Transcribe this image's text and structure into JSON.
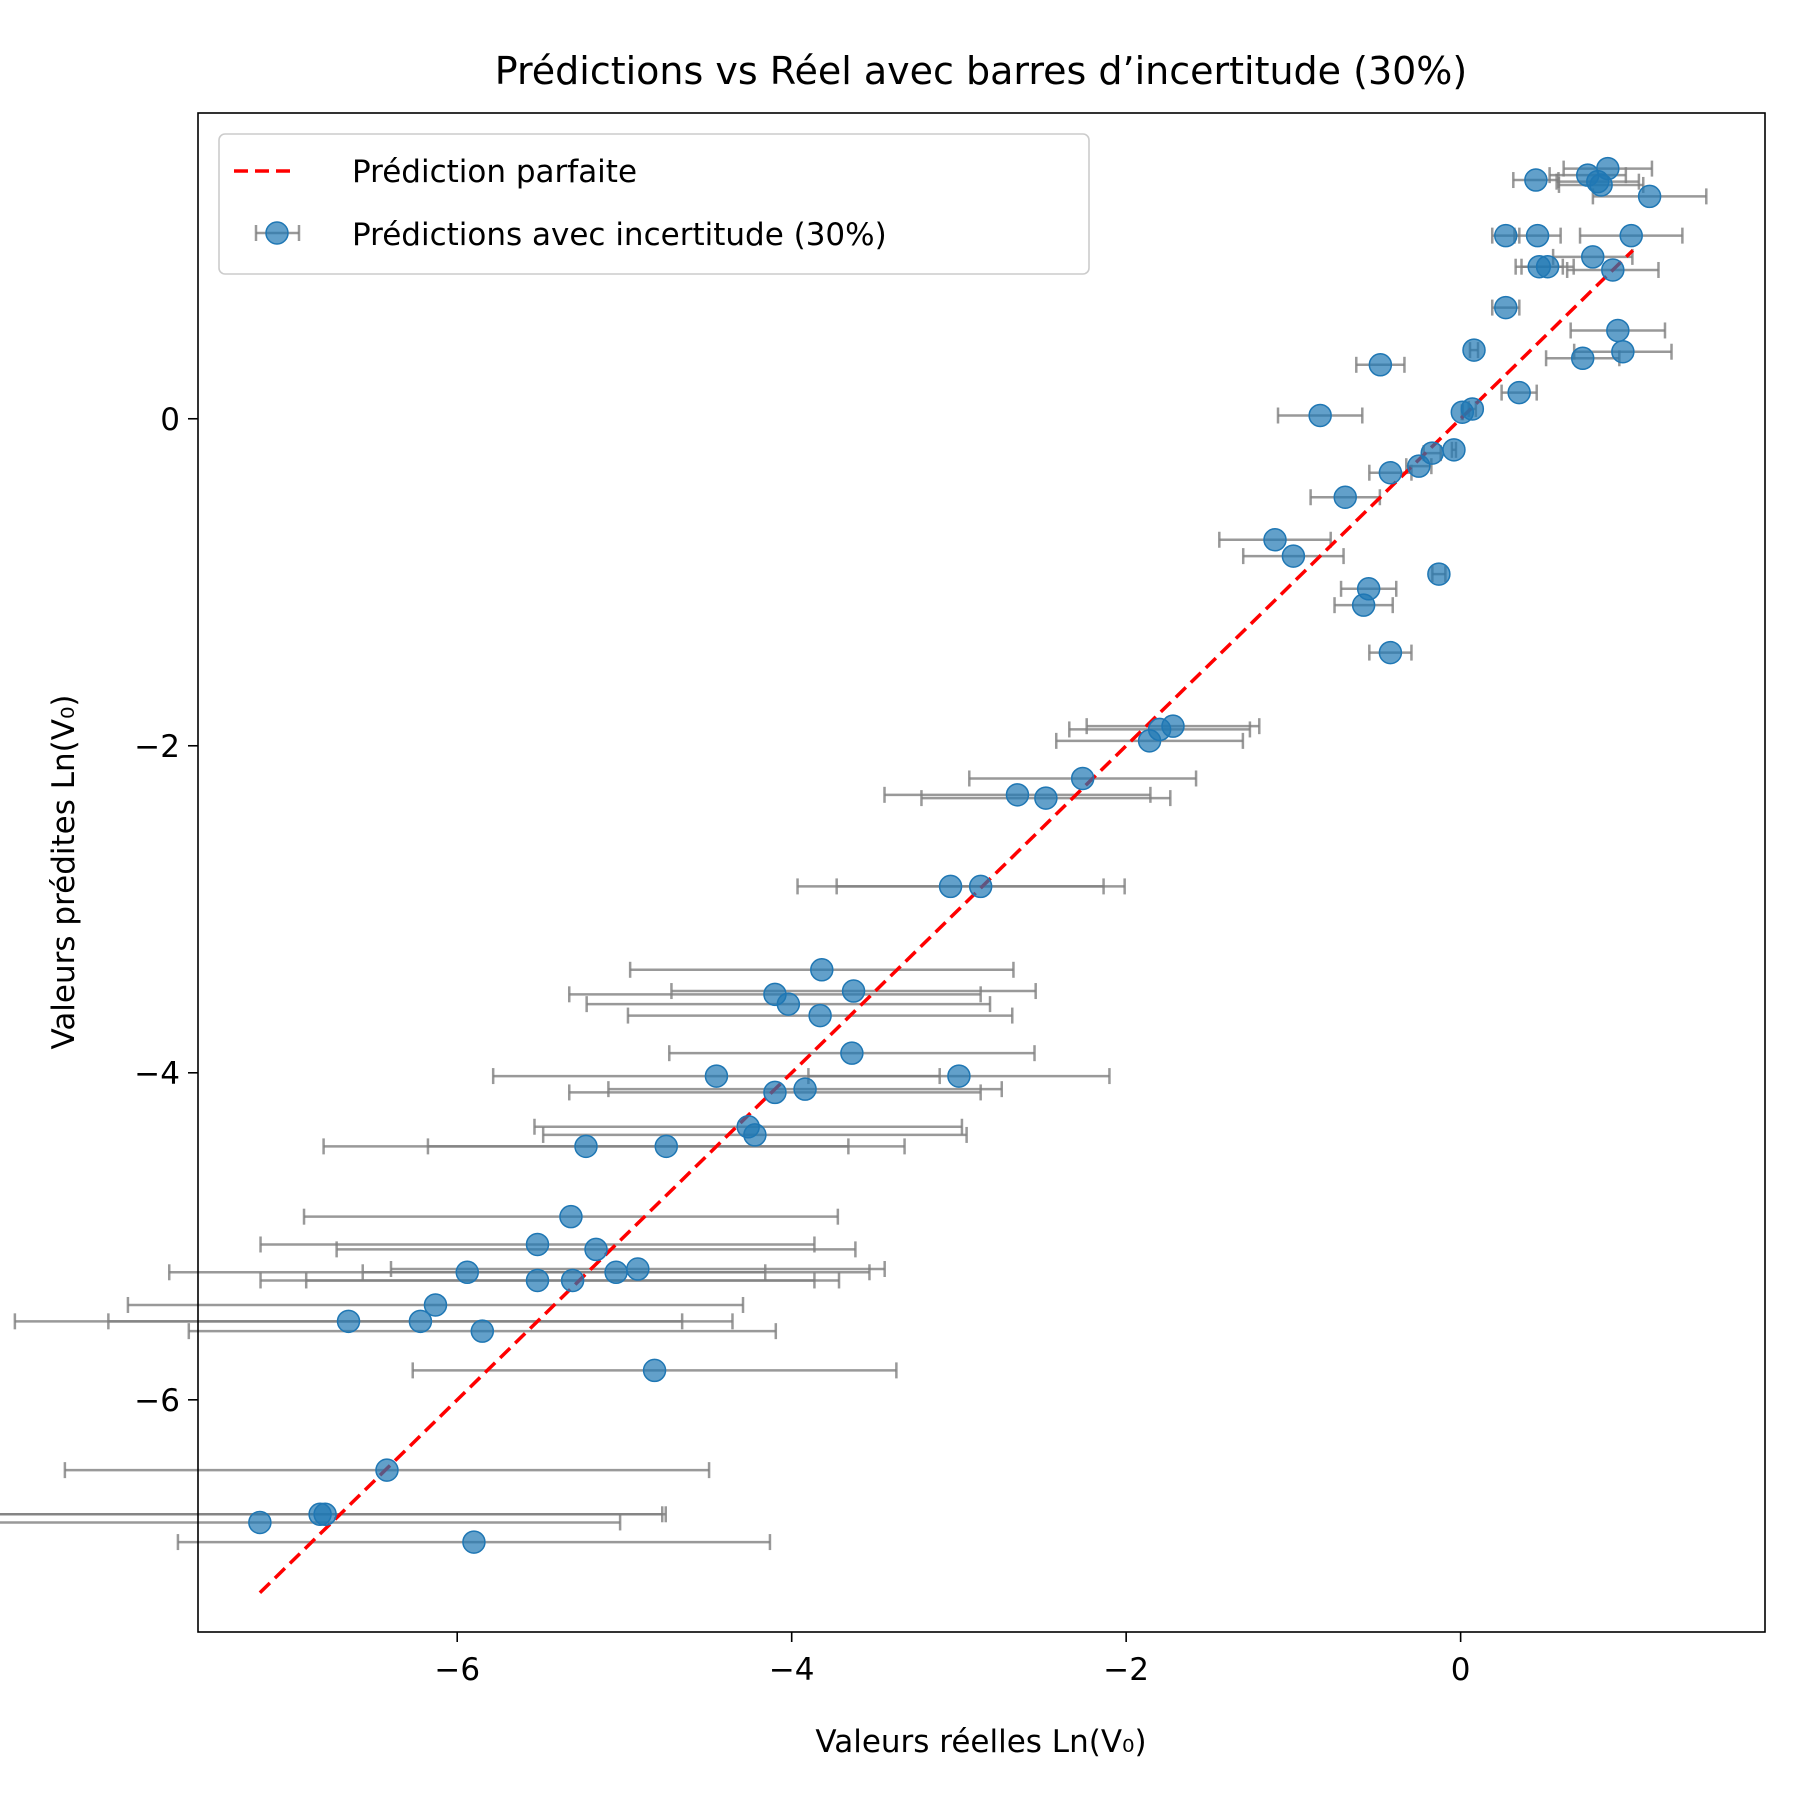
{
  "chart_data": {
    "type": "scatter",
    "title": "Prédictions vs Réel avec barres d’incertitude (30%)",
    "xlabel": "Valeurs réelles Ln(V₀)",
    "ylabel": "Valeurs prédites Ln(V₀)",
    "xlim": [
      -7.55,
      1.82
    ],
    "ylim": [
      -7.42,
      1.87
    ],
    "xticks": [
      -6,
      -4,
      -2,
      0
    ],
    "yticks": [
      -6,
      -4,
      -2,
      0
    ],
    "xtick_labels": [
      "−6",
      "−4",
      "−2",
      "0"
    ],
    "ytick_labels": [
      "−6",
      "−4",
      "−2",
      "0"
    ],
    "grid": false,
    "legend_position": "top-left",
    "legend": [
      "Prédiction parfaite",
      "Prédictions avec incertitude (30%)"
    ],
    "colors": {
      "points": "#1f77b4",
      "errorbars": "#808080",
      "reference": "#ff0000"
    },
    "uncertainty_fraction": 0.3,
    "reference_line": {
      "name": "Prédiction parfaite",
      "x": [
        -7.18,
        1.03
      ],
      "y": [
        -7.18,
        1.03
      ]
    },
    "series": [
      {
        "name": "Prédictions avec incertitude (30%)",
        "points": [
          [
            -7.18,
            -6.75
          ],
          [
            -6.82,
            -6.7
          ],
          [
            -6.79,
            -6.7
          ],
          [
            -5.9,
            -6.87
          ],
          [
            -6.42,
            -6.43
          ],
          [
            -4.82,
            -5.82
          ],
          [
            -5.85,
            -5.58
          ],
          [
            -6.65,
            -5.52
          ],
          [
            -6.22,
            -5.52
          ],
          [
            -6.13,
            -5.42
          ],
          [
            -5.94,
            -5.22
          ],
          [
            -5.52,
            -5.27
          ],
          [
            -5.31,
            -5.27
          ],
          [
            -5.05,
            -5.22
          ],
          [
            -4.92,
            -5.2
          ],
          [
            -5.52,
            -5.05
          ],
          [
            -5.17,
            -5.08
          ],
          [
            -5.32,
            -4.88
          ],
          [
            -5.23,
            -4.45
          ],
          [
            -4.75,
            -4.45
          ],
          [
            -4.22,
            -4.38
          ],
          [
            -4.26,
            -4.33
          ],
          [
            -4.1,
            -4.12
          ],
          [
            -3.92,
            -4.1
          ],
          [
            -4.45,
            -4.02
          ],
          [
            -3.0,
            -4.02
          ],
          [
            -3.64,
            -3.88
          ],
          [
            -3.83,
            -3.65
          ],
          [
            -4.02,
            -3.58
          ],
          [
            -4.1,
            -3.52
          ],
          [
            -3.63,
            -3.5
          ],
          [
            -3.82,
            -3.37
          ],
          [
            -3.05,
            -2.86
          ],
          [
            -2.87,
            -2.86
          ],
          [
            -2.65,
            -2.3
          ],
          [
            -2.48,
            -2.32
          ],
          [
            -2.26,
            -2.2
          ],
          [
            -1.86,
            -1.97
          ],
          [
            -1.8,
            -1.9
          ],
          [
            -1.72,
            -1.88
          ],
          [
            -0.42,
            -1.43
          ],
          [
            -0.58,
            -1.14
          ],
          [
            -0.55,
            -1.04
          ],
          [
            -0.13,
            -0.95
          ],
          [
            -1.0,
            -0.84
          ],
          [
            -1.11,
            -0.74
          ],
          [
            -0.69,
            -0.48
          ],
          [
            -0.42,
            -0.33
          ],
          [
            -0.25,
            -0.29
          ],
          [
            -0.17,
            -0.21
          ],
          [
            -0.04,
            -0.19
          ],
          [
            -0.84,
            0.02
          ],
          [
            0.01,
            0.04
          ],
          [
            0.07,
            0.06
          ],
          [
            0.35,
            0.16
          ],
          [
            -0.48,
            0.33
          ],
          [
            0.08,
            0.42
          ],
          [
            0.73,
            0.37
          ],
          [
            0.97,
            0.41
          ],
          [
            0.94,
            0.54
          ],
          [
            0.27,
            0.68
          ],
          [
            0.47,
            0.93
          ],
          [
            0.52,
            0.93
          ],
          [
            0.91,
            0.91
          ],
          [
            0.79,
            0.99
          ],
          [
            0.27,
            1.12
          ],
          [
            0.46,
            1.12
          ],
          [
            1.02,
            1.12
          ],
          [
            1.13,
            1.36
          ],
          [
            0.45,
            1.46
          ],
          [
            0.76,
            1.49
          ],
          [
            0.82,
            1.45
          ],
          [
            0.84,
            1.43
          ],
          [
            0.88,
            1.53
          ]
        ]
      }
    ]
  }
}
